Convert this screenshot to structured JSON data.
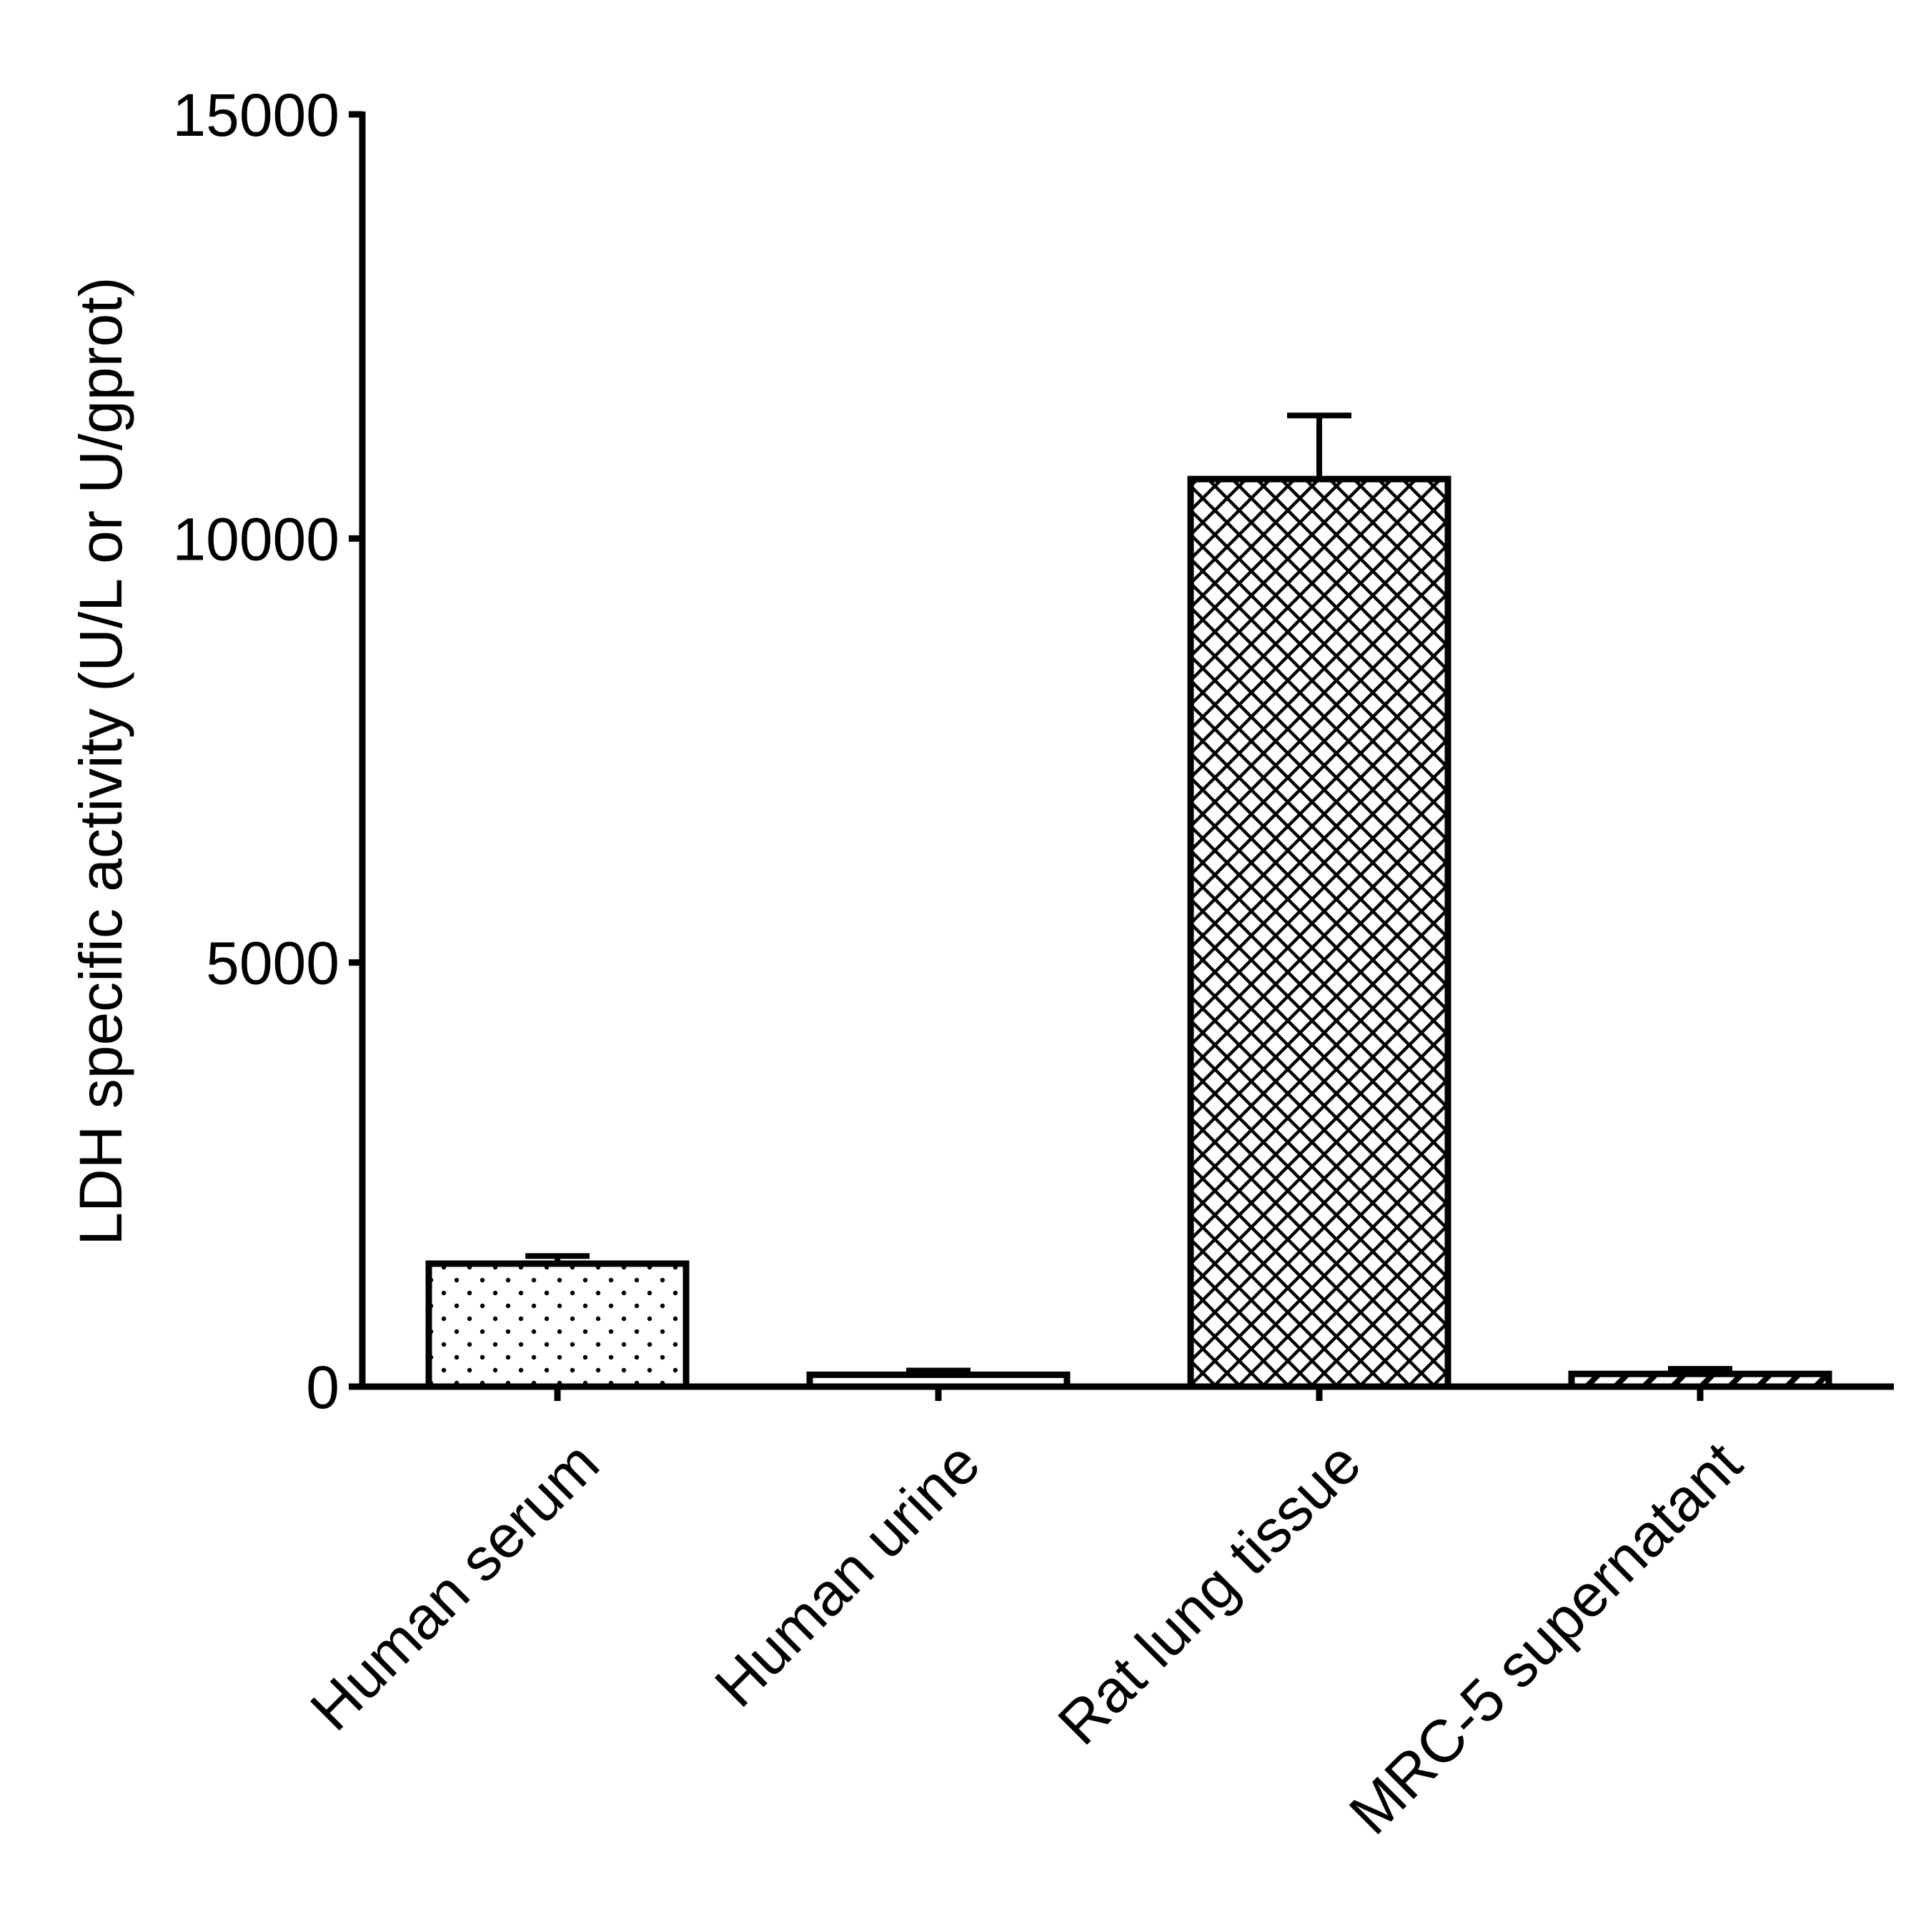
{
  "chart_data": {
    "type": "bar",
    "title": "",
    "xlabel": "",
    "ylabel": "LDH specific activity (U/L or U/gprot)",
    "ylim": [
      0,
      15000
    ],
    "yticks": [
      0,
      5000,
      10000,
      15000
    ],
    "ytick_labels": [
      "0",
      "5000",
      "10000",
      "15000"
    ],
    "categories": [
      "Human serum",
      "Human urine",
      "Rat lung tissue",
      "MRC-5 supernatant"
    ],
    "values": [
      1450,
      140,
      10700,
      150
    ],
    "errors": [
      90,
      50,
      750,
      60
    ],
    "patterns": [
      "dots",
      "none",
      "crosshatch",
      "diagonal"
    ],
    "colors": {
      "stroke": "#000000",
      "fill": "#ffffff"
    },
    "grid": false,
    "legend": "none"
  }
}
